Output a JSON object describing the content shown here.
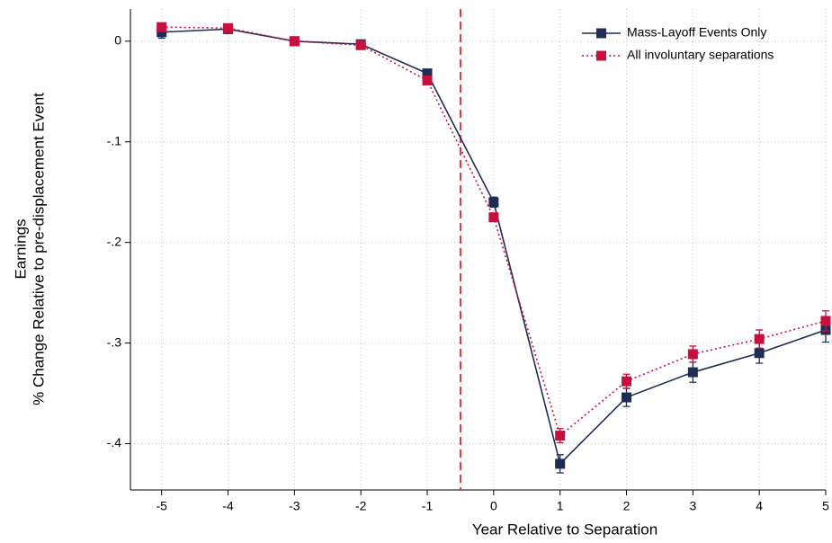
{
  "chart_data": {
    "type": "line",
    "x_label": "Year Relative to Separation",
    "y_label": [
      "Earnings",
      "% Change Relative to pre-displacement Event"
    ],
    "x": [
      -5,
      -4,
      -3,
      -2,
      -1,
      0,
      1,
      2,
      3,
      4,
      5
    ],
    "series": [
      {
        "name": "Mass-Layoff Events Only",
        "color": "#1f2d56",
        "dash": "solid",
        "values": [
          0.009,
          0.012,
          0,
          -0.003,
          -0.032,
          -0.16,
          -0.42,
          -0.354,
          -0.329,
          -0.31,
          -0.287
        ],
        "errors": [
          0.006,
          0.004,
          0,
          0.003,
          0.004,
          0.005,
          0.009,
          0.009,
          0.01,
          0.01,
          0.012
        ]
      },
      {
        "name": "All involuntary separations",
        "color": "#c8103e",
        "dash": "dotted",
        "values": [
          0.014,
          0.013,
          0,
          -0.004,
          -0.039,
          -0.175,
          -0.392,
          -0.338,
          -0.311,
          -0.296,
          -0.278
        ],
        "errors": [
          0.004,
          0.003,
          0,
          0.002,
          0.003,
          0.004,
          0.007,
          0.007,
          0.008,
          0.009,
          0.01
        ]
      }
    ],
    "vline": -0.5,
    "vline_color": "#e0282e",
    "xlim": [
      -5.47,
      5
    ],
    "ylim": [
      -0.446,
      0.032
    ],
    "xticks": [
      -5,
      -4,
      -3,
      -2,
      -1,
      0,
      1,
      2,
      3,
      4,
      5
    ],
    "yticks": [
      0,
      {
        "value": -0.1,
        "label": "-.1"
      },
      {
        "value": -0.2,
        "label": "-.2"
      },
      {
        "value": -0.3,
        "label": "-.3"
      },
      {
        "value": -0.4,
        "label": "-.4"
      }
    ],
    "grid": true,
    "legend": "top-right"
  }
}
